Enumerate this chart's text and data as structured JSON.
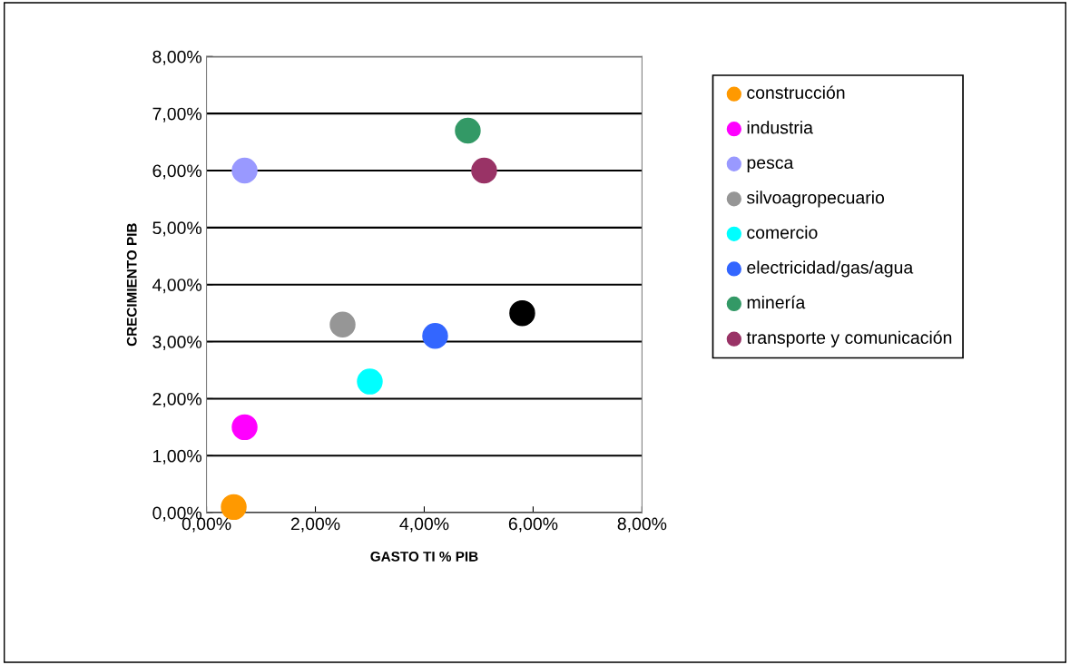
{
  "chart_data": {
    "type": "scatter",
    "xlabel": "GASTO TI % PIB",
    "ylabel": "CRECIMIENTO PIB",
    "series": [
      {
        "name": "construcción",
        "color": "#ff9900",
        "x": [
          0.5
        ],
        "values": [
          0.1
        ]
      },
      {
        "name": "industria",
        "color": "#ff00ff",
        "x": [
          0.7
        ],
        "values": [
          1.5
        ]
      },
      {
        "name": "pesca",
        "color": "#9999ff",
        "x": [
          0.7
        ],
        "values": [
          6.0
        ]
      },
      {
        "name": "silvoagropecuario",
        "color": "#969696",
        "x": [
          2.5
        ],
        "values": [
          3.3
        ]
      },
      {
        "name": "comercio",
        "color": "#00ffff",
        "x": [
          3.0
        ],
        "values": [
          2.3
        ]
      },
      {
        "name": "electricidad/gas/agua",
        "color": "#3366ff",
        "x": [
          4.2
        ],
        "values": [
          3.1
        ]
      },
      {
        "name": "minería",
        "color": "#339966",
        "x": [
          4.8
        ],
        "values": [
          6.7
        ]
      },
      {
        "name": "transporte y comunicación",
        "color": "#993366",
        "x": [
          5.1
        ],
        "values": [
          6.0
        ]
      },
      {
        "color": "#000000",
        "x": [
          5.8
        ],
        "values": [
          3.5
        ]
      }
    ],
    "xlim": [
      0,
      8
    ],
    "ylim": [
      0,
      8
    ],
    "xticks": [
      {
        "value": 0,
        "label": "0,00%"
      },
      {
        "value": 2,
        "label": "2,00%"
      },
      {
        "value": 4,
        "label": "4,00%"
      },
      {
        "value": 6,
        "label": "6,00%"
      },
      {
        "value": 8,
        "label": "8,00%"
      }
    ],
    "yticks": [
      {
        "value": 0,
        "label": "0,00%"
      },
      {
        "value": 1,
        "label": "1,00%"
      },
      {
        "value": 2,
        "label": "2,00%"
      },
      {
        "value": 3,
        "label": "3,00%"
      },
      {
        "value": 4,
        "label": "4,00%"
      },
      {
        "value": 5,
        "label": "5,00%"
      },
      {
        "value": 6,
        "label": "6,00%"
      },
      {
        "value": 7,
        "label": "7,00%"
      },
      {
        "value": 8,
        "label": "8,00%"
      }
    ],
    "grid": "y",
    "marker": "circle",
    "legend": "right"
  }
}
